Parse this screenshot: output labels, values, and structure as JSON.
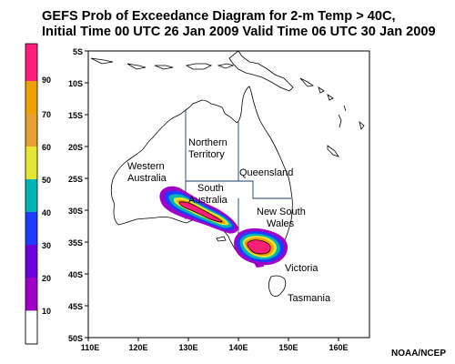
{
  "title": {
    "line1": "GEFS Prob of Exceedance Diagram for 2-m Temp > 40C,",
    "line2": "Initial Time 00 UTC 26 Jan 2009 Valid Time 06 UTC 30 Jan 2009"
  },
  "colorbar": {
    "labels": [
      "10",
      "20",
      "30",
      "40",
      "50",
      "60",
      "70",
      "90"
    ],
    "colors": [
      "#ffffff",
      "#a000c8",
      "#6e00dc",
      "#1e3cff",
      "#00b4b4",
      "#e6e632",
      "#f0a000",
      "#f0a000",
      "#ff1e78"
    ]
  },
  "axes": {
    "lat_labels": [
      "5S",
      "10S",
      "15S",
      "20S",
      "25S",
      "30S",
      "35S",
      "40S",
      "45S",
      "50S"
    ],
    "lon_labels": [
      "110E",
      "120E",
      "130E",
      "140E",
      "150E",
      "160E"
    ]
  },
  "regions": {
    "western_australia": [
      "Western",
      "Australia"
    ],
    "northern_territory": [
      "Northern",
      "Territory"
    ],
    "queensland": "Queensland",
    "south_australia": [
      "South",
      "Australia"
    ],
    "new_south_wales": [
      "New South",
      "Wales"
    ],
    "victoria": "Victoria",
    "tasmania": "Tasmania"
  },
  "credit": "NOAA/NCEP"
}
